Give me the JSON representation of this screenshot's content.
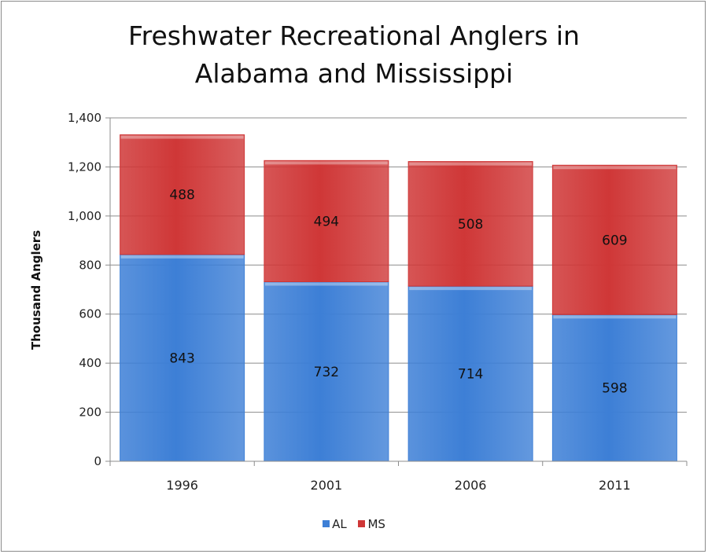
{
  "chart_data": {
    "type": "bar",
    "stacked": true,
    "title": [
      "Freshwater Recreational Anglers in",
      "Alabama and Mississippi"
    ],
    "xlabel": "",
    "ylabel": "Thousand  Anglers",
    "categories": [
      "1996",
      "2001",
      "2006",
      "2011"
    ],
    "series": [
      {
        "name": "AL",
        "values": [
          843,
          732,
          714,
          598
        ],
        "color": "#3d7fd6"
      },
      {
        "name": "MS",
        "values": [
          488,
          494,
          508,
          609
        ],
        "color": "#cf3737"
      }
    ],
    "ylim": [
      0,
      1400
    ],
    "yticks": [
      "0",
      "200",
      "400",
      "600",
      "800",
      "1,000",
      "1,200",
      "1,400"
    ],
    "grid": true,
    "legend_position": "bottom"
  }
}
